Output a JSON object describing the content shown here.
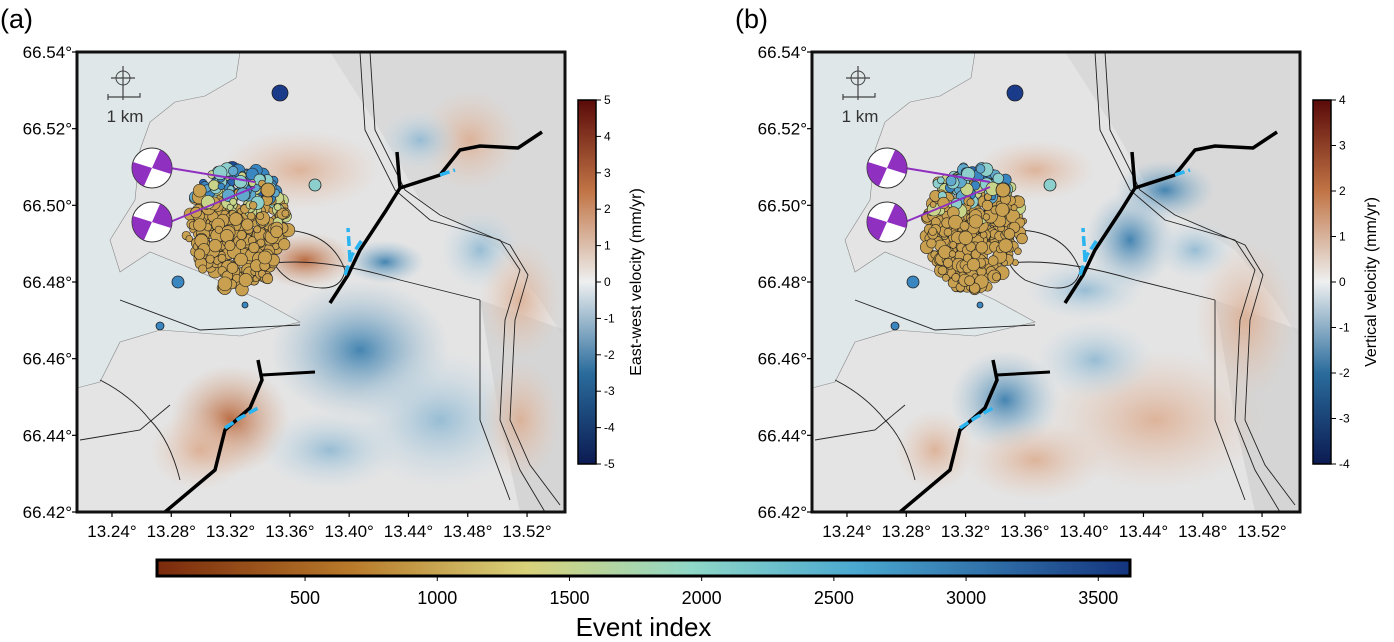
{
  "panels": [
    {
      "label": "(a)",
      "scale_label": "1 km",
      "lat_range": [
        66.42,
        66.54
      ],
      "lon_range": [
        13.2164,
        13.5456
      ],
      "lat_ticks": [
        {
          "value": 66.54,
          "label": "66.54°"
        },
        {
          "value": 66.52,
          "label": "66.52°"
        },
        {
          "value": 66.5,
          "label": "66.50°"
        },
        {
          "value": 66.48,
          "label": "66.48°"
        },
        {
          "value": 66.46,
          "label": "66.46°"
        },
        {
          "value": 66.44,
          "label": "66.44°"
        },
        {
          "value": 66.42,
          "label": "66.42°"
        }
      ],
      "lon_ticks": [
        {
          "value": 13.24,
          "label": "13.24°"
        },
        {
          "value": 13.28,
          "label": "13.28°"
        },
        {
          "value": 13.32,
          "label": "13.32°"
        },
        {
          "value": 13.36,
          "label": "13.36°"
        },
        {
          "value": 13.4,
          "label": "13.40°"
        },
        {
          "value": 13.44,
          "label": "13.44°"
        },
        {
          "value": 13.48,
          "label": "13.48°"
        },
        {
          "value": 13.52,
          "label": "13.52°"
        }
      ],
      "colorbar": {
        "label": "East-west velocity (mm/yr)",
        "range": [
          -5,
          5
        ],
        "ticks": [
          -5,
          -4,
          -3,
          -2,
          -1,
          0,
          1,
          2,
          3,
          4,
          5
        ]
      }
    },
    {
      "label": "(b)",
      "scale_label": "1 km",
      "lat_range": [
        66.42,
        66.54
      ],
      "lon_range": [
        13.2164,
        13.5456
      ],
      "lat_ticks": [
        {
          "value": 66.54,
          "label": "66.54°"
        },
        {
          "value": 66.52,
          "label": "66.52°"
        },
        {
          "value": 66.5,
          "label": "66.50°"
        },
        {
          "value": 66.48,
          "label": "66.48°"
        },
        {
          "value": 66.46,
          "label": "66.46°"
        },
        {
          "value": 66.44,
          "label": "66.44°"
        },
        {
          "value": 66.42,
          "label": "66.42°"
        }
      ],
      "lon_ticks": [
        {
          "value": 13.24,
          "label": "13.24°"
        },
        {
          "value": 13.28,
          "label": "13.28°"
        },
        {
          "value": 13.32,
          "label": "13.32°"
        },
        {
          "value": 13.36,
          "label": "13.36°"
        },
        {
          "value": 13.4,
          "label": "13.40°"
        },
        {
          "value": 13.44,
          "label": "13.44°"
        },
        {
          "value": 13.48,
          "label": "13.48°"
        },
        {
          "value": 13.52,
          "label": "13.52°"
        }
      ],
      "colorbar": {
        "label": "Vertical velocity (mm/yr)",
        "range": [
          -4,
          4
        ],
        "ticks": [
          -4,
          -3,
          -2,
          -1,
          0,
          1,
          2,
          3,
          4
        ]
      }
    }
  ],
  "event_colorbar": {
    "label": "Event index",
    "range": [
      -60,
      3620
    ],
    "ticks": [
      500,
      1000,
      1500,
      2000,
      2500,
      3000,
      3500
    ]
  }
}
